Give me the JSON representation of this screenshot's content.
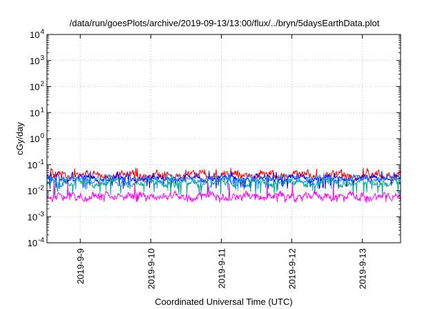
{
  "chart_data": {
    "type": "line",
    "title": "/data/run/goesPlots/archive/2019-09-13/13:00/flux/../bryn/5daysEarthData.plot",
    "xlabel": "Coordinated Universal Time (UTC)",
    "ylabel": "cGy/day",
    "y_scale": "log",
    "ylim": [
      0.0001,
      10000
    ],
    "y_ticks": [
      {
        "value": 0.0001,
        "base": "10",
        "exp": "-4"
      },
      {
        "value": 0.001,
        "base": "10",
        "exp": "-3"
      },
      {
        "value": 0.01,
        "base": "10",
        "exp": "-2"
      },
      {
        "value": 0.1,
        "base": "10",
        "exp": "-1"
      },
      {
        "value": 1,
        "base": "10",
        "exp": "0"
      },
      {
        "value": 10,
        "base": "10",
        "exp": "1"
      },
      {
        "value": 100,
        "base": "10",
        "exp": "2"
      },
      {
        "value": 1000,
        "base": "10",
        "exp": "3"
      },
      {
        "value": 10000,
        "base": "10",
        "exp": "4"
      }
    ],
    "xlim": [
      "2019-09-08 12:40",
      "2019-09-13 13:00"
    ],
    "x_ticks": [
      {
        "value": "2019-09-09 00:00",
        "label": "2019-9-9"
      },
      {
        "value": "2019-09-10 00:00",
        "label": "2019-9-10"
      },
      {
        "value": "2019-09-11 00:00",
        "label": "2019-9-11"
      },
      {
        "value": "2019-09-12 00:00",
        "label": "2019-9-12"
      },
      {
        "value": "2019-09-13 00:00",
        "label": "2019-9-13"
      }
    ],
    "grid": true,
    "series": [
      {
        "color": "#ff0000",
        "center": 0.04,
        "spread": 0.17,
        "spike": 0.07,
        "dip": 0.025
      },
      {
        "color": "#0000ff",
        "center": 0.03,
        "spread": 0.13,
        "spike": 0.05,
        "dip": 0.014
      },
      {
        "color": "#00aa88",
        "center": 0.02,
        "spread": 0.15,
        "spike": 0.035,
        "dip": 0.008
      },
      {
        "color": "#1e90ff",
        "center": 0.028,
        "spread": 0.12,
        "spike": 0.045,
        "dip": 0.012
      },
      {
        "color": "#ff00ff",
        "center": 0.006,
        "spread": 0.17,
        "spike": 0.02,
        "dip": 0.004
      }
    ]
  }
}
